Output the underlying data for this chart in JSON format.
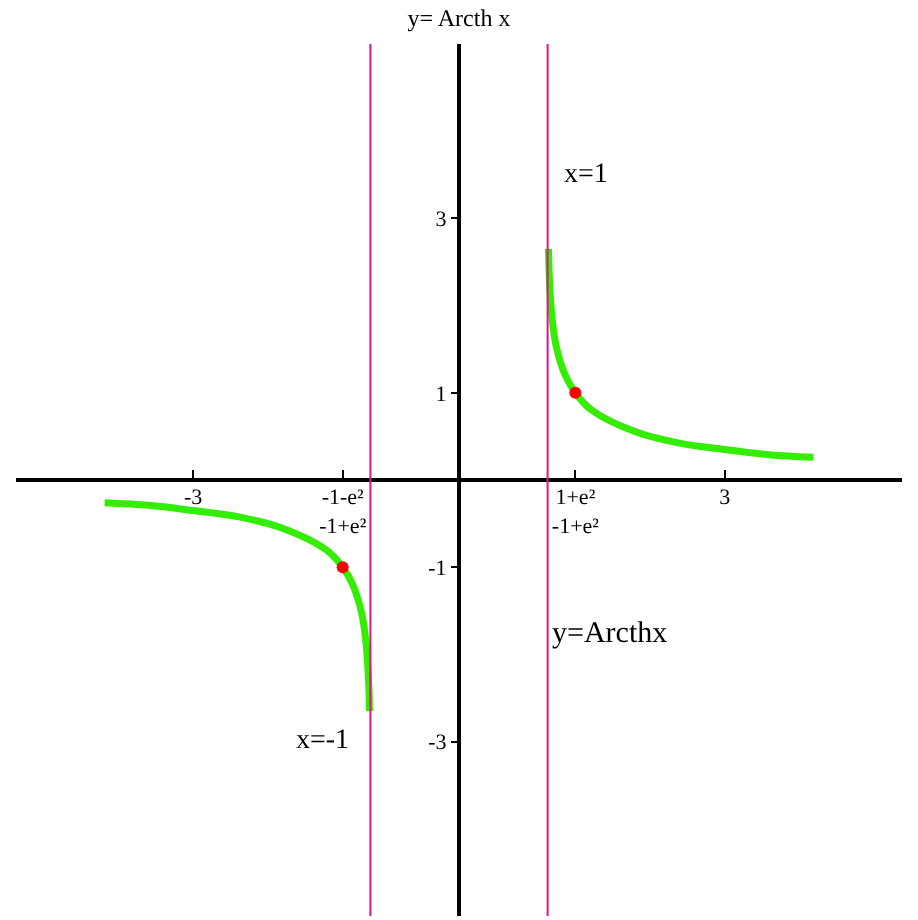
{
  "chart_data": {
    "type": "line",
    "title": "y= Arcth x",
    "xlim": [
      -5,
      5
    ],
    "ylim": [
      -5,
      5
    ],
    "xticks": [
      {
        "value": -3,
        "label": "-3"
      },
      {
        "value": -1.313,
        "label": "-1-e²\n-1+e²"
      },
      {
        "value": 1.313,
        "label": "1+e²\n-1+e²"
      },
      {
        "value": 3,
        "label": "3"
      }
    ],
    "yticks": [
      {
        "value": -3,
        "label": "-3"
      },
      {
        "value": -1,
        "label": "-1"
      },
      {
        "value": 1,
        "label": "1"
      },
      {
        "value": 3,
        "label": "3"
      }
    ],
    "legend": false,
    "line_style": "solid",
    "marker": "none",
    "series": [
      {
        "color": "#33ee00",
        "x": [
          1.01,
          1.02,
          1.05,
          1.1,
          1.2,
          1.313,
          1.5,
          2,
          2.5,
          3,
          3.5,
          4
        ],
        "values": [
          2.65,
          2.31,
          1.86,
          1.52,
          1.2,
          1.0,
          0.8,
          0.55,
          0.42,
          0.35,
          0.29,
          0.26
        ]
      },
      {
        "color": "#33ee00",
        "x": [
          -4,
          -3.5,
          -3,
          -2.5,
          -2,
          -1.5,
          -1.313,
          -1.2,
          -1.1,
          -1.05,
          -1.02,
          -1.01
        ],
        "values": [
          -0.26,
          -0.29,
          -0.35,
          -0.42,
          -0.55,
          -0.8,
          -1.0,
          -1.2,
          -1.52,
          -1.86,
          -2.31,
          -2.65
        ]
      },
      {
        "type": "scatter",
        "marker": "circle",
        "color": "#ff0000",
        "x": [
          1.313,
          -1.313
        ],
        "values": [
          1.0,
          -1.0
        ]
      }
    ],
    "ref_lines": [
      {
        "axis": "x",
        "value": 1,
        "label": "x=1",
        "color": "#e0128c"
      },
      {
        "axis": "x",
        "value": -1,
        "label": "x=-1",
        "color": "#e0128c"
      }
    ],
    "annotations": [
      "y=Arcthx"
    ]
  }
}
